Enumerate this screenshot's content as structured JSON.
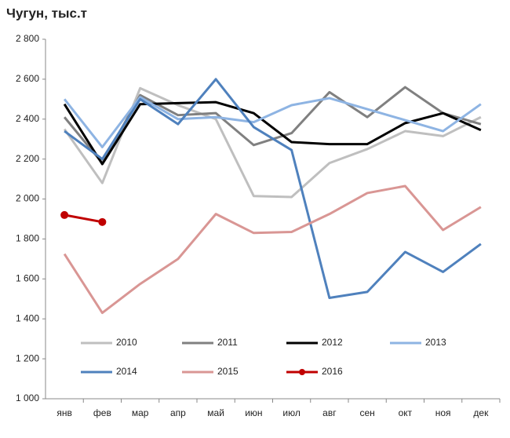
{
  "chart_data": {
    "type": "line",
    "title": "Чугун, тыс.т",
    "categories": [
      "янв",
      "фев",
      "мар",
      "апр",
      "май",
      "июн",
      "июл",
      "авг",
      "сен",
      "окт",
      "ноя",
      "дек"
    ],
    "ylim": [
      1000,
      2800
    ],
    "yticks": [
      {
        "value": 1000,
        "label": "1 000"
      },
      {
        "value": 1200,
        "label": "1 200"
      },
      {
        "value": 1400,
        "label": "1 400"
      },
      {
        "value": 1600,
        "label": "1 600"
      },
      {
        "value": 1800,
        "label": "1 800"
      },
      {
        "value": 2000,
        "label": "2 000"
      },
      {
        "value": 2200,
        "label": "2 200"
      },
      {
        "value": 2400,
        "label": "2 400"
      },
      {
        "value": 2600,
        "label": "2 600"
      },
      {
        "value": 2800,
        "label": "2 800"
      }
    ],
    "grid": false,
    "series": [
      {
        "name": "2010",
        "color": "#bfbfbf",
        "values": [
          2350,
          2080,
          2555,
          2470,
          2400,
          2015,
          2010,
          2180,
          2250,
          2340,
          2315,
          2410
        ]
      },
      {
        "name": "2011",
        "color": "#808080",
        "values": [
          2410,
          2180,
          2520,
          2420,
          2430,
          2270,
          2330,
          2535,
          2410,
          2560,
          2430,
          2375
        ]
      },
      {
        "name": "2012",
        "color": "#000000",
        "values": [
          2475,
          2175,
          2475,
          2480,
          2485,
          2430,
          2285,
          2275,
          2275,
          2380,
          2430,
          2345
        ]
      },
      {
        "name": "2013",
        "color": "#8eb4e3",
        "values": [
          2500,
          2260,
          2510,
          2400,
          2410,
          2385,
          2470,
          2505,
          2450,
          2395,
          2340,
          2475
        ]
      },
      {
        "name": "2014",
        "color": "#4f81bd",
        "values": [
          2340,
          2200,
          2500,
          2375,
          2600,
          2360,
          2245,
          1505,
          1535,
          1735,
          1635,
          1775
        ]
      },
      {
        "name": "2015",
        "color": "#d99694",
        "values": [
          1725,
          1430,
          1575,
          1700,
          1925,
          1830,
          1835,
          1925,
          2030,
          2065,
          1845,
          1960
        ]
      },
      {
        "name": "2016",
        "color": "#c00000",
        "marker": true,
        "values": [
          1920,
          1885,
          null,
          null,
          null,
          null,
          null,
          null,
          null,
          null,
          null,
          null
        ]
      }
    ]
  }
}
